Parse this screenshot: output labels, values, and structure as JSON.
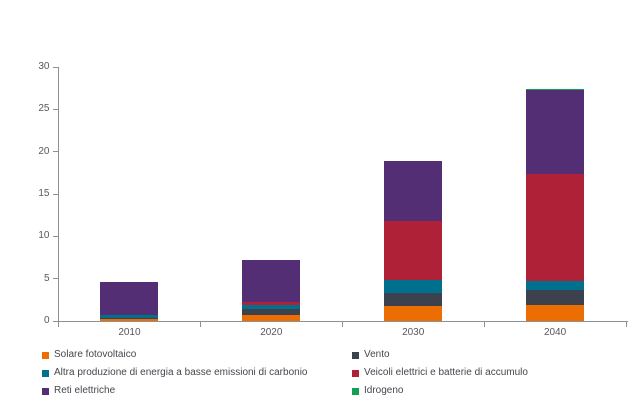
{
  "chart_data": {
    "type": "bar",
    "stacked": true,
    "title": "",
    "xlabel": "",
    "ylabel": "",
    "categories": [
      "2010",
      "2020",
      "2030",
      "2040"
    ],
    "series": [
      {
        "name": "Solare fotovoltaico",
        "color": "#EC6E03",
        "values": [
          0.3,
          0.75,
          1.8,
          1.9
        ]
      },
      {
        "name": "Vento",
        "color": "#3B414D",
        "values": [
          0.1,
          0.7,
          1.55,
          1.8
        ]
      },
      {
        "name": "Altra produzione di energia a basse emissioni di carbonio",
        "color": "#00708F",
        "values": [
          0.35,
          0.45,
          1.5,
          1.05
        ]
      },
      {
        "name": "Veicoli elettrici e batterie di accumulo",
        "color": "#AE2137",
        "values": [
          0.0,
          0.35,
          7.0,
          12.65
        ]
      },
      {
        "name": "Reti elettriche",
        "color": "#532E75",
        "values": [
          3.9,
          4.9,
          7.1,
          9.9
        ]
      },
      {
        "name": "Idrogeno",
        "color": "#10A04F",
        "values": [
          0.0,
          0.0,
          0.0,
          0.15
        ]
      }
    ],
    "totals": [
      4.65,
      7.15,
      18.95,
      27.45
    ],
    "ylim": [
      0,
      30
    ],
    "yticks": [
      "0",
      "5",
      "10",
      "15",
      "20",
      "25",
      "30"
    ],
    "grid": false,
    "legend_position": "bottom",
    "legend_columns": 2
  },
  "style": {
    "axis_color": "#8C9196",
    "tick_text_color": "#55585E",
    "legend_text_color": "#44474D",
    "background": "#FFFFFF"
  }
}
